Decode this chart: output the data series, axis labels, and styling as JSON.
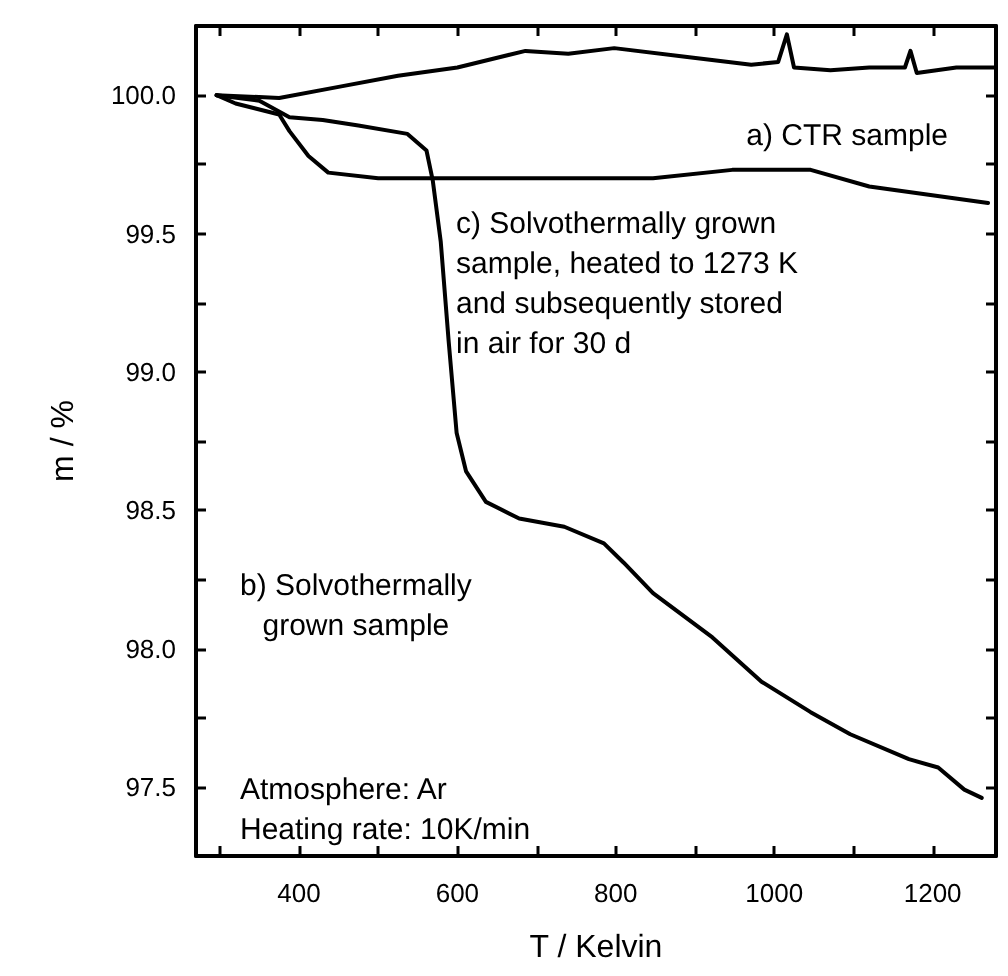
{
  "chart_data": {
    "type": "line",
    "xlabel": "T / Kelvin",
    "ylabel": "m / %",
    "xlim": [
      270,
      1280
    ],
    "ylim": [
      97.25,
      100.25
    ],
    "xticks": [
      {
        "value": 300,
        "label": null
      },
      400,
      {
        "value": 500,
        "label": null
      },
      600,
      {
        "value": 700,
        "label": null
      },
      800,
      {
        "value": 900,
        "label": null
      },
      1000,
      {
        "value": 1100,
        "label": null
      },
      1200
    ],
    "yticks": [
      97.5,
      {
        "value": 97.75,
        "label": null
      },
      "98.0",
      {
        "value": 98.25,
        "label": null
      },
      98.5,
      {
        "value": 98.75,
        "label": null
      },
      "99.0",
      {
        "value": 99.25,
        "label": null
      },
      99.5,
      {
        "value": 99.75,
        "label": null
      },
      "100.0"
    ],
    "grid": false,
    "marker": "none",
    "line_style": "solid",
    "series": [
      {
        "color": "#000000",
        "x": [
          296,
          375,
          450,
          525,
          600,
          686,
          740,
          798,
          885,
          971,
          1005,
          1016,
          1025,
          1071,
          1120,
          1165,
          1172,
          1180,
          1230,
          1280
        ],
        "values": [
          100.0,
          99.99,
          100.03,
          100.07,
          100.1,
          100.16,
          100.15,
          100.17,
          100.14,
          100.11,
          100.12,
          100.22,
          100.1,
          100.09,
          100.1,
          100.1,
          100.16,
          100.08,
          100.1,
          100.1
        ]
      },
      {
        "color": "#000000",
        "x": [
          296,
          350,
          388,
          430,
          475,
          537,
          561,
          569,
          579,
          589,
          599,
          611,
          636,
          678,
          735,
          785,
          810,
          847,
          922,
          984,
          1046,
          1096,
          1170,
          1207,
          1240,
          1262
        ],
        "values": [
          100.0,
          99.98,
          99.92,
          99.91,
          99.89,
          99.86,
          99.8,
          99.69,
          99.47,
          99.11,
          98.78,
          98.64,
          98.53,
          98.47,
          98.44,
          98.38,
          98.31,
          98.2,
          98.04,
          97.88,
          97.77,
          97.69,
          97.6,
          97.57,
          97.49,
          97.46
        ]
      },
      {
        "color": "#000000",
        "x": [
          296,
          320,
          375,
          388,
          412,
          437,
          500,
          648,
          847,
          947,
          1046,
          1120,
          1195,
          1270
        ],
        "values": [
          100.0,
          99.97,
          99.93,
          99.87,
          99.78,
          99.72,
          99.7,
          99.7,
          99.7,
          99.73,
          99.73,
          99.67,
          99.64,
          99.61
        ]
      }
    ],
    "annotations": [
      "a) CTR sample",
      "b) Solvothermally\ngrown sample",
      "c) Solvothermally grown\nsample, heated to 1273 K\nand subsequently stored\nin air for 30 d",
      "Atmosphere: Ar\nHeating rate: 10K/min"
    ]
  }
}
